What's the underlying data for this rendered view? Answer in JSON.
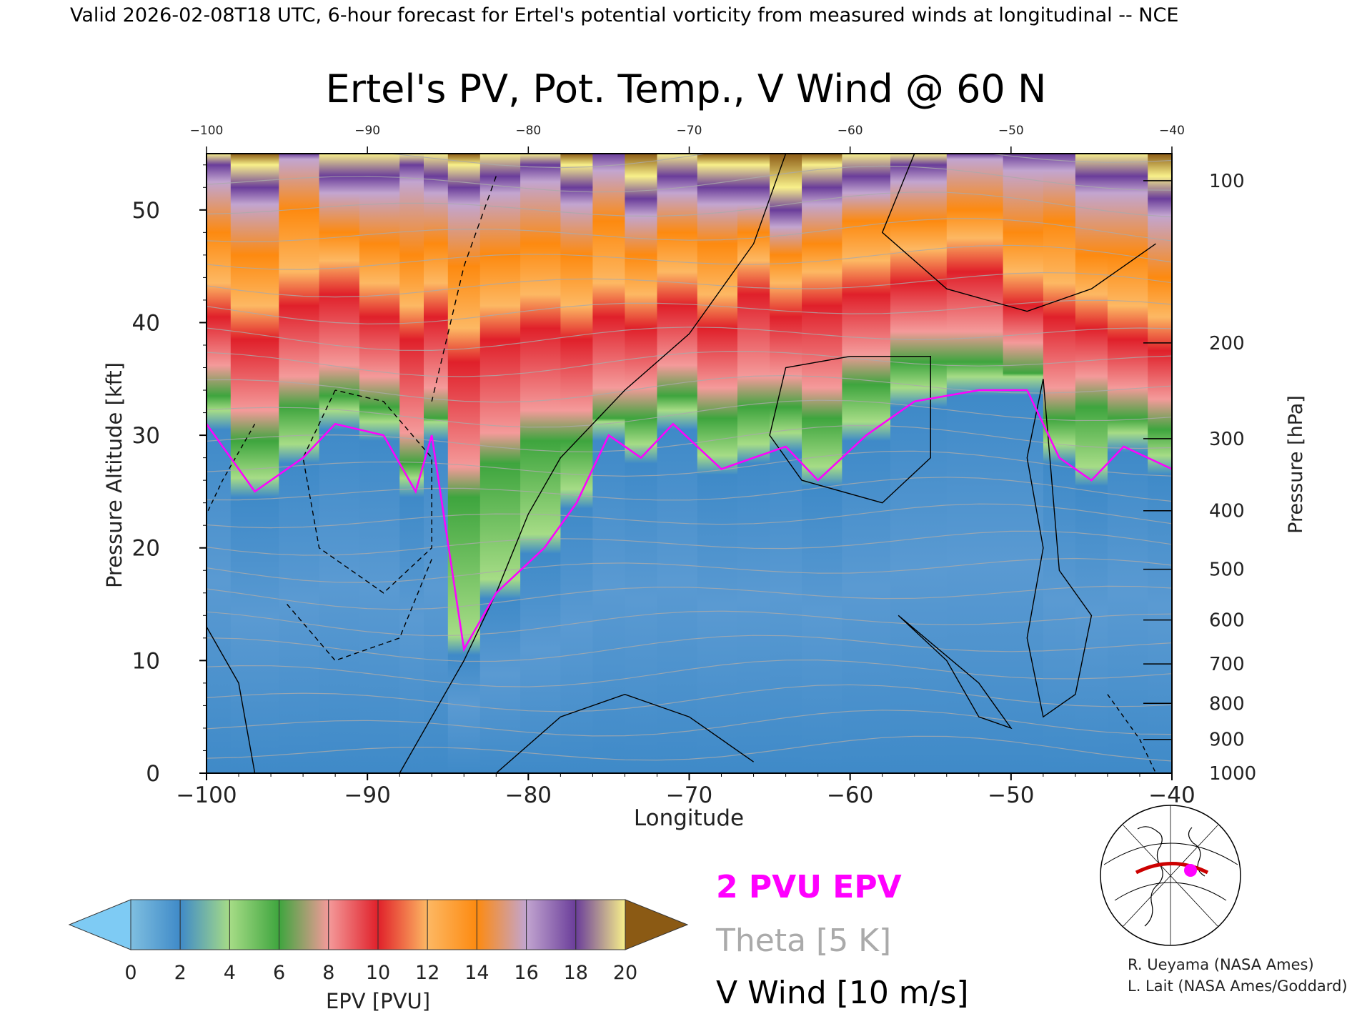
{
  "header": {
    "valid_line": "Valid 2026-02-08T18 UTC, 6-hour forecast for Ertel's potential vorticity from measured winds at longitudinal -- NCE"
  },
  "chart_data": {
    "type": "heatmap",
    "title": "Ertel's PV, Pot. Temp., V Wind @ 60 N",
    "xlabel": "Longitude",
    "ylabel_left": "Pressure Altitude [kft]",
    "ylabel_right": "Pressure [hPa]",
    "xlim": [
      -100,
      -40
    ],
    "ylim": [
      0,
      55
    ],
    "x_ticks": [
      -100,
      -90,
      -80,
      -70,
      -60,
      -50,
      -40
    ],
    "x_tick_labels": [
      "−100",
      "−90",
      "−80",
      "−70",
      "−60",
      "−50",
      "−40"
    ],
    "top_tick_labels": [
      "−100",
      "−90",
      "−80",
      "−70",
      "−60",
      "−50",
      "−40"
    ],
    "y_ticks": [
      0,
      10,
      20,
      30,
      40,
      50
    ],
    "y_tick_labels": [
      "0",
      "10",
      "20",
      "30",
      "40",
      "50"
    ],
    "pressure_ticks": [
      {
        "kft": 0,
        "label": "1000"
      },
      {
        "kft": 3,
        "label": "900"
      },
      {
        "kft": 6.2,
        "label": "800"
      },
      {
        "kft": 9.7,
        "label": "700"
      },
      {
        "kft": 13.6,
        "label": "600"
      },
      {
        "kft": 18.1,
        "label": "500"
      },
      {
        "kft": 23.3,
        "label": "400"
      },
      {
        "kft": 29.7,
        "label": "300"
      },
      {
        "kft": 38.2,
        "label": "200"
      },
      {
        "kft": 52.6,
        "label": "100"
      }
    ],
    "epv_field_kft": [
      {
        "lon": -100,
        "pv2": 31,
        "pv6": 34,
        "pv8": 40,
        "pv12": 48,
        "pv14": 54
      },
      {
        "lon": -97,
        "pv2": 25,
        "pv6": 30,
        "pv8": 38,
        "pv12": 46,
        "pv14": 52
      },
      {
        "lon": -94,
        "pv2": 28,
        "pv6": 33,
        "pv8": 41,
        "pv12": 50,
        "pv14": 56
      },
      {
        "lon": -92,
        "pv2": 31,
        "pv6": 34,
        "pv8": 42,
        "pv12": 48,
        "pv14": 53
      },
      {
        "lon": -89,
        "pv2": 30,
        "pv6": 33,
        "pv8": 40,
        "pv12": 47,
        "pv14": 53
      },
      {
        "lon": -87,
        "pv2": 25,
        "pv6": 28,
        "pv8": 38,
        "pv12": 46,
        "pv14": 54
      },
      {
        "lon": -86,
        "pv2": 30,
        "pv6": 32,
        "pv8": 40,
        "pv12": 47,
        "pv14": 53
      },
      {
        "lon": -84,
        "pv2": 11,
        "pv6": 25,
        "pv8": 36,
        "pv12": 45,
        "pv14": 52
      },
      {
        "lon": -82,
        "pv2": 16,
        "pv6": 28,
        "pv8": 38,
        "pv12": 46,
        "pv14": 53
      },
      {
        "lon": -79,
        "pv2": 20,
        "pv6": 30,
        "pv8": 39,
        "pv12": 47,
        "pv14": 54
      },
      {
        "lon": -77,
        "pv2": 24,
        "pv6": 30,
        "pv8": 38,
        "pv12": 46,
        "pv14": 52
      },
      {
        "lon": -75,
        "pv2": 30,
        "pv6": 32,
        "pv8": 40,
        "pv12": 49,
        "pv14": 55
      },
      {
        "lon": -73,
        "pv2": 28,
        "pv6": 32,
        "pv8": 39,
        "pv12": 46,
        "pv14": 51
      },
      {
        "lon": -71,
        "pv2": 31,
        "pv6": 34,
        "pv8": 41,
        "pv12": 48,
        "pv14": 53
      },
      {
        "lon": -68,
        "pv2": 27,
        "pv6": 32,
        "pv8": 39,
        "pv12": 47,
        "pv14": 52
      },
      {
        "lon": -66,
        "pv2": 28,
        "pv6": 33,
        "pv8": 42,
        "pv12": 48,
        "pv14": 52
      },
      {
        "lon": -64,
        "pv2": 29,
        "pv6": 33,
        "pv8": 40,
        "pv12": 46,
        "pv14": 50
      },
      {
        "lon": -62,
        "pv2": 26,
        "pv6": 32,
        "pv8": 41,
        "pv12": 47,
        "pv14": 52
      },
      {
        "lon": -59,
        "pv2": 30,
        "pv6": 35,
        "pv8": 42,
        "pv12": 49,
        "pv14": 53
      },
      {
        "lon": -56,
        "pv2": 33,
        "pv6": 37,
        "pv8": 43,
        "pv12": 49,
        "pv14": 54
      },
      {
        "lon": -52,
        "pv2": 34,
        "pv6": 37,
        "pv8": 44,
        "pv12": 50,
        "pv14": 56
      },
      {
        "lon": -49,
        "pv2": 34,
        "pv6": 36,
        "pv8": 41,
        "pv12": 48,
        "pv14": 55
      },
      {
        "lon": -47,
        "pv2": 28,
        "pv6": 32,
        "pv8": 40,
        "pv12": 49,
        "pv14": 55
      },
      {
        "lon": -45,
        "pv2": 26,
        "pv6": 33,
        "pv8": 39,
        "pv12": 46,
        "pv14": 53
      },
      {
        "lon": -43,
        "pv2": 29,
        "pv6": 32,
        "pv8": 38,
        "pv12": 46,
        "pv14": 53
      },
      {
        "lon": -40,
        "pv2": 27,
        "pv6": 31,
        "pv8": 37,
        "pv12": 44,
        "pv14": 51
      }
    ],
    "colorbar": {
      "label": "EPV [PVU]",
      "ticks": [
        "0",
        "2",
        "4",
        "6",
        "8",
        "10",
        "12",
        "14",
        "16",
        "18",
        "20"
      ],
      "colors": [
        "#7fbfe0",
        "#3f8ac8",
        "#a6dc86",
        "#3ea53e",
        "#f49a9a",
        "#e0202a",
        "#fdb863",
        "#fd8a10",
        "#c2a5d0",
        "#6a3d9a",
        "#f8f08a",
        "#8b5a14"
      ],
      "under_color": "#7ecbf4",
      "over_color": "#8b5a14"
    },
    "legend": {
      "pv_label": "2 PVU EPV",
      "pv_color": "#ff00ff",
      "theta_label": "Theta [5 K]",
      "theta_color": "#aaaaaa",
      "wind_label": "V Wind [10 m/s]",
      "wind_color": "#000000"
    }
  },
  "credits": {
    "line1": "R. Ueyama (NASA Ames)",
    "line2": "L. Lait (NASA Ames/Goddard)"
  }
}
